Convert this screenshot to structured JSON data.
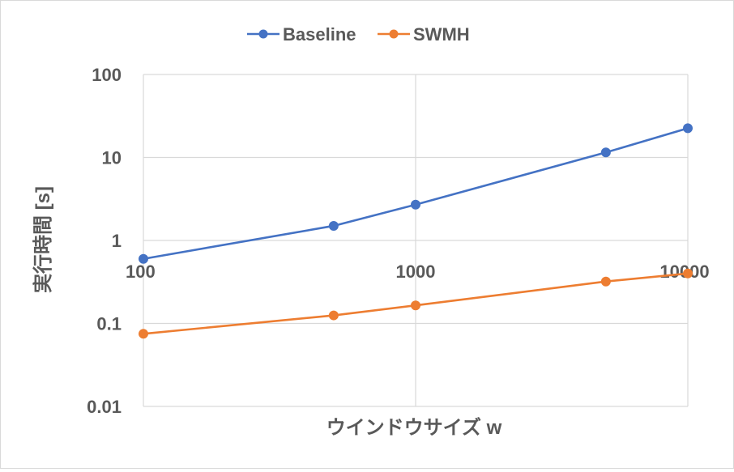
{
  "chart_data": {
    "type": "line",
    "title": "",
    "xlabel": "ウインドウサイズ w",
    "ylabel": "実行時間 [s]",
    "x_scale": "log",
    "y_scale": "log",
    "xlim": [
      100,
      10000
    ],
    "ylim": [
      0.01,
      100
    ],
    "x_ticks": [
      100,
      1000,
      10000
    ],
    "x_tick_labels": [
      "100",
      "1000",
      "10000"
    ],
    "y_ticks": [
      0.01,
      0.1,
      1,
      10,
      100
    ],
    "y_tick_labels": [
      "0.01",
      "0.1",
      "1",
      "10",
      "100"
    ],
    "grid": true,
    "legend_position": "top-center",
    "x": [
      100,
      500,
      1000,
      5000,
      10000
    ],
    "series": [
      {
        "name": "Baseline",
        "color": "#4472c4",
        "values": [
          0.6,
          1.5,
          2.7,
          11.5,
          22.5
        ]
      },
      {
        "name": "SWMH",
        "color": "#ed7d31",
        "values": [
          0.075,
          0.125,
          0.165,
          0.32,
          0.4
        ]
      }
    ]
  }
}
